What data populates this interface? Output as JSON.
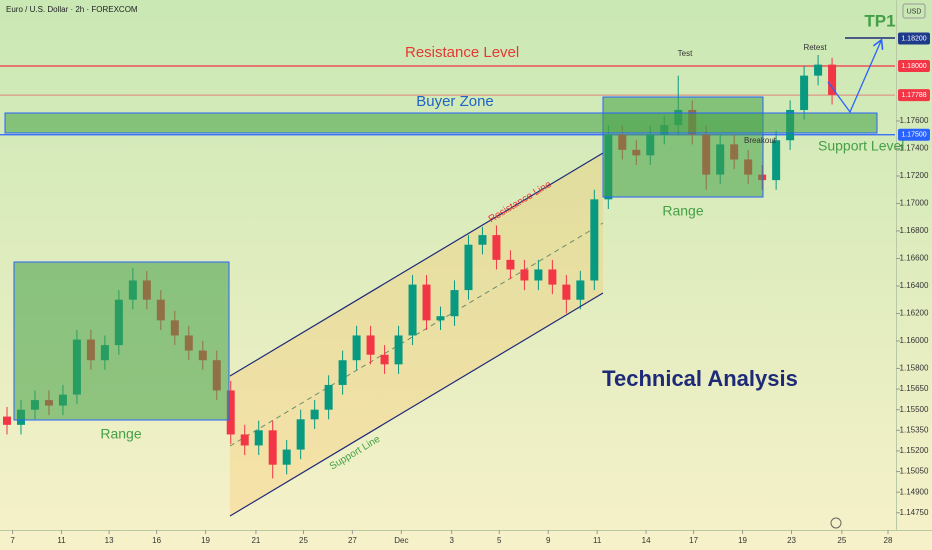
{
  "chart_data": {
    "type": "candlestick",
    "title": "Euro / U.S. Dollar · 2h · FOREXCOM",
    "currency": "USD",
    "up_color": "#089981",
    "down_color": "#f23645",
    "x": [
      0,
      1,
      2,
      3,
      4,
      5,
      6,
      7,
      8,
      9,
      10,
      11,
      12,
      13,
      14,
      15,
      16,
      17,
      18,
      19,
      20,
      21,
      22,
      23,
      24,
      25,
      26,
      27,
      28,
      29,
      30,
      31,
      32,
      33,
      34,
      35,
      36,
      37,
      38,
      39,
      40,
      41,
      42,
      43,
      44,
      45,
      46,
      47,
      48,
      49,
      50,
      51,
      52,
      53,
      54,
      55,
      56,
      57,
      58,
      59
    ],
    "open": [
      1.1545,
      1.1539,
      1.155,
      1.1557,
      1.1553,
      1.1561,
      1.1601,
      1.1586,
      1.1597,
      1.163,
      1.1644,
      1.163,
      1.1615,
      1.1604,
      1.1593,
      1.1586,
      1.1564,
      1.1532,
      1.1524,
      1.1535,
      1.151,
      1.1521,
      1.1543,
      1.155,
      1.1568,
      1.1586,
      1.1604,
      1.159,
      1.1583,
      1.1604,
      1.1641,
      1.1615,
      1.1618,
      1.1637,
      1.167,
      1.1677,
      1.1659,
      1.1652,
      1.1644,
      1.1652,
      1.1641,
      1.163,
      1.1644,
      1.1703,
      1.175,
      1.1739,
      1.1735,
      1.175,
      1.1757,
      1.1768,
      1.175,
      1.1721,
      1.1743,
      1.1732,
      1.1721,
      1.1717,
      1.1746,
      1.1768,
      1.1793,
      1.1801
    ],
    "high": [
      1.1552,
      1.1557,
      1.1564,
      1.1564,
      1.1568,
      1.1608,
      1.1608,
      1.1604,
      1.1637,
      1.1653,
      1.1651,
      1.1637,
      1.1622,
      1.1611,
      1.16,
      1.1593,
      1.1571,
      1.1539,
      1.1542,
      1.1542,
      1.1528,
      1.155,
      1.1557,
      1.1575,
      1.1593,
      1.1611,
      1.1611,
      1.1597,
      1.1611,
      1.1648,
      1.1648,
      1.1625,
      1.1644,
      1.1677,
      1.1683,
      1.1684,
      1.1666,
      1.1659,
      1.1659,
      1.1659,
      1.1648,
      1.1651,
      1.171,
      1.1757,
      1.1757,
      1.1746,
      1.1757,
      1.1764,
      1.1793,
      1.1775,
      1.1757,
      1.175,
      1.175,
      1.1739,
      1.1728,
      1.1753,
      1.1775,
      1.18,
      1.1808,
      1.1806
    ],
    "low": [
      1.1532,
      1.1532,
      1.1543,
      1.1546,
      1.1546,
      1.1554,
      1.1579,
      1.1579,
      1.159,
      1.1623,
      1.1623,
      1.1608,
      1.1597,
      1.1586,
      1.1579,
      1.1557,
      1.1525,
      1.1517,
      1.1517,
      1.15,
      1.1503,
      1.1514,
      1.1536,
      1.1543,
      1.1561,
      1.1579,
      1.1583,
      1.1576,
      1.1576,
      1.1597,
      1.1608,
      1.1608,
      1.1611,
      1.163,
      1.1663,
      1.1652,
      1.1645,
      1.1637,
      1.1637,
      1.1634,
      1.162,
      1.1623,
      1.1637,
      1.1696,
      1.1732,
      1.1728,
      1.1728,
      1.1743,
      1.175,
      1.1743,
      1.171,
      1.1714,
      1.1725,
      1.1714,
      1.171,
      1.171,
      1.1739,
      1.1761,
      1.1786,
      1.1772
    ],
    "close": [
      1.1539,
      1.155,
      1.1557,
      1.1553,
      1.1561,
      1.1601,
      1.1586,
      1.1597,
      1.163,
      1.1644,
      1.163,
      1.1615,
      1.1604,
      1.1593,
      1.1586,
      1.1564,
      1.1532,
      1.1524,
      1.1535,
      1.151,
      1.1521,
      1.1543,
      1.155,
      1.1568,
      1.1586,
      1.1604,
      1.159,
      1.1583,
      1.1604,
      1.1641,
      1.1615,
      1.1618,
      1.1637,
      1.167,
      1.1677,
      1.1659,
      1.1652,
      1.1644,
      1.1652,
      1.1641,
      1.163,
      1.1644,
      1.1703,
      1.175,
      1.1739,
      1.1735,
      1.175,
      1.1757,
      1.1768,
      1.175,
      1.1721,
      1.1743,
      1.1732,
      1.1721,
      1.1717,
      1.1746,
      1.1768,
      1.1793,
      1.1801,
      1.1779
    ],
    "xlim": [
      -0.5,
      63.5
    ],
    "xticks": [
      {
        "value": 0.4,
        "label": "7"
      },
      {
        "value": 3.9,
        "label": "11"
      },
      {
        "value": 7.3,
        "label": "13"
      },
      {
        "value": 10.7,
        "label": "16"
      },
      {
        "value": 14.2,
        "label": "19"
      },
      {
        "value": 17.8,
        "label": "21"
      },
      {
        "value": 21.2,
        "label": "25"
      },
      {
        "value": 24.7,
        "label": "27"
      },
      {
        "value": 28.2,
        "label": "Dec"
      },
      {
        "value": 31.8,
        "label": "3"
      },
      {
        "value": 35.2,
        "label": "5"
      },
      {
        "value": 38.7,
        "label": "9"
      },
      {
        "value": 42.2,
        "label": "11"
      },
      {
        "value": 45.7,
        "label": "14"
      },
      {
        "value": 49.1,
        "label": "17"
      },
      {
        "value": 52.6,
        "label": "19"
      },
      {
        "value": 56.1,
        "label": "23"
      },
      {
        "value": 59.7,
        "label": "25"
      },
      {
        "value": 63.0,
        "label": "28"
      }
    ],
    "ylim": [
      1.14625,
      1.1848
    ],
    "yticks": [
      {
        "value": 1.176,
        "label": "1.17600"
      },
      {
        "value": 1.174,
        "label": "1.17400"
      },
      {
        "value": 1.172,
        "label": "1.17200"
      },
      {
        "value": 1.17,
        "label": "1.17000"
      },
      {
        "value": 1.168,
        "label": "1.16800"
      },
      {
        "value": 1.166,
        "label": "1.16600"
      },
      {
        "value": 1.164,
        "label": "1.16400"
      },
      {
        "value": 1.162,
        "label": "1.16200"
      },
      {
        "value": 1.16,
        "label": "1.16000"
      },
      {
        "value": 1.158,
        "label": "1.15800"
      },
      {
        "value": 1.1565,
        "label": "1.15650"
      },
      {
        "value": 1.155,
        "label": "1.15500"
      },
      {
        "value": 1.1535,
        "label": "1.15350"
      },
      {
        "value": 1.152,
        "label": "1.15200"
      },
      {
        "value": 1.1505,
        "label": "1.15050"
      },
      {
        "value": 1.149,
        "label": "1.14900"
      },
      {
        "value": 1.1475,
        "label": "1.14750"
      }
    ],
    "levels": [
      {
        "value": 1.182,
        "label": "1.18200",
        "color": "#1e3a8a",
        "line": false
      },
      {
        "value": 1.18,
        "label": "1.18000",
        "color": "#f23645",
        "line": true
      },
      {
        "value": 1.17788,
        "label": "1.17788",
        "color": "#f23645",
        "line": true
      },
      {
        "value": 1.175,
        "label": "1.17500",
        "color": "#2962ff",
        "line": true
      }
    ],
    "annotations": {
      "resistance_level": "Resistance Level",
      "buyer_zone": "Buyer Zone",
      "support_level": "Support Level",
      "tp1": "TP1",
      "test": "Test",
      "retest": "Retest",
      "breakout": "Breakout",
      "range_left": "Range",
      "range_right": "Range",
      "resistance_line": "Resistance Line",
      "support_line": "Support Line",
      "technical_analysis": "Technical Analysis"
    }
  }
}
